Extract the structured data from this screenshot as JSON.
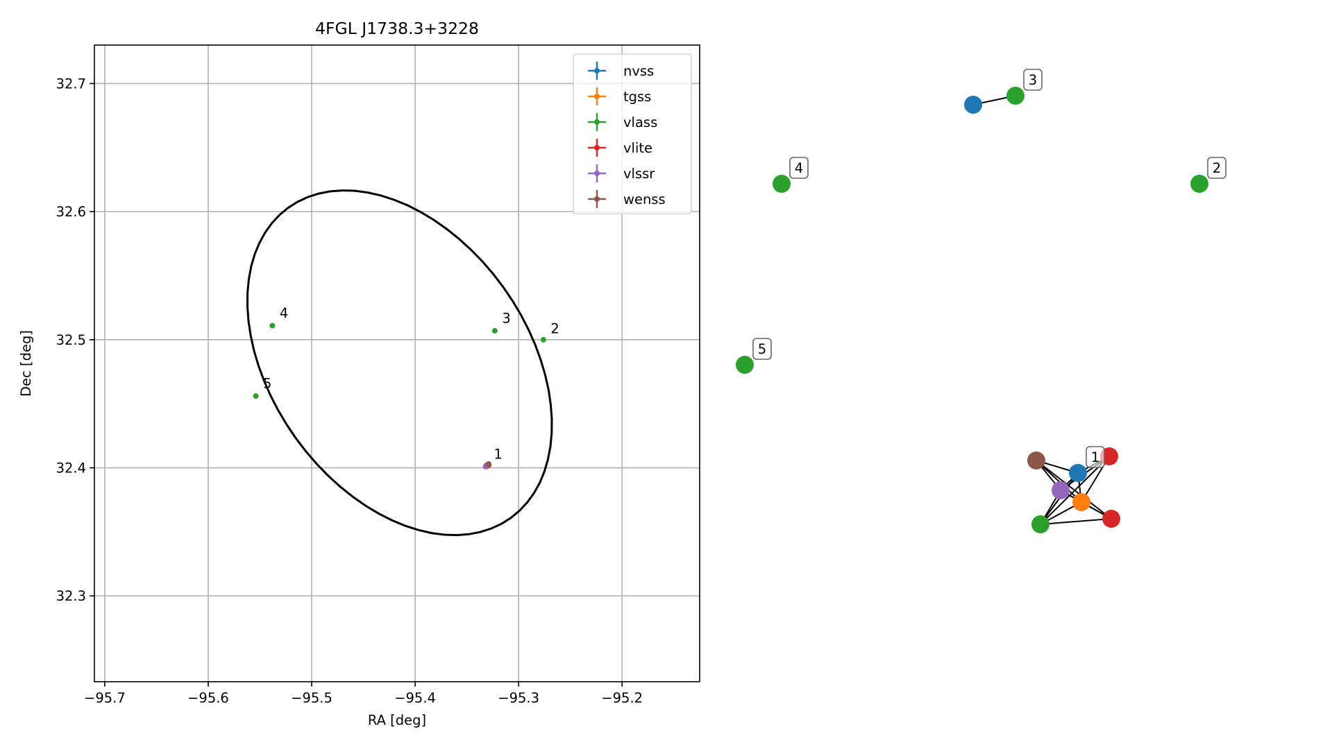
{
  "chart_data": [
    {
      "type": "scatter",
      "title": "4FGL J1738.3+3228",
      "xlabel": "RA [deg]",
      "ylabel": "Dec [deg]",
      "xlim": [
        -95.71,
        -95.125
      ],
      "ylim": [
        32.233,
        32.73
      ],
      "grid": true,
      "legend_position": "top-right",
      "x_ticks": [
        -95.7,
        -95.6,
        -95.5,
        -95.4,
        -95.3,
        -95.2
      ],
      "x_tick_labels": [
        "−95.7",
        "−95.6",
        "−95.5",
        "−95.4",
        "−95.3",
        "−95.2"
      ],
      "y_ticks": [
        32.3,
        32.4,
        32.5,
        32.6,
        32.7
      ],
      "y_tick_labels": [
        "32.3",
        "32.4",
        "32.5",
        "32.6",
        "32.7"
      ],
      "series": [
        {
          "name": "nvss",
          "color": "#1f77b4",
          "points": [
            {
              "x": -95.331,
              "y": 32.402
            }
          ]
        },
        {
          "name": "tgss",
          "color": "#ff7f0e",
          "points": [
            {
              "x": -95.331,
              "y": 32.401
            }
          ]
        },
        {
          "name": "vlass",
          "color": "#2ca02c",
          "points": [
            {
              "x": -95.331,
              "y": 32.401
            },
            {
              "x": -95.276,
              "y": 32.5
            },
            {
              "x": -95.323,
              "y": 32.507
            },
            {
              "x": -95.538,
              "y": 32.511
            },
            {
              "x": -95.554,
              "y": 32.456
            }
          ]
        },
        {
          "name": "vlite",
          "color": "#d62728",
          "points": [
            {
              "x": -95.33,
              "y": 32.402
            },
            {
              "x": -95.329,
              "y": 32.402
            }
          ]
        },
        {
          "name": "vlssr",
          "color": "#9467bd",
          "points": [
            {
              "x": -95.332,
              "y": 32.401
            }
          ]
        },
        {
          "name": "wenss",
          "color": "#8c564b",
          "points": [
            {
              "x": -95.329,
              "y": 32.403
            }
          ]
        }
      ],
      "annotations": [
        {
          "text": "1",
          "x": -95.328,
          "y": 32.405
        },
        {
          "text": "2",
          "x": -95.273,
          "y": 32.503
        },
        {
          "text": "3",
          "x": -95.32,
          "y": 32.511
        },
        {
          "text": "4",
          "x": -95.535,
          "y": 32.515
        },
        {
          "text": "5",
          "x": -95.551,
          "y": 32.46
        }
      ],
      "ellipse": {
        "center": [
          -95.415,
          32.482
        ],
        "semi_major": 0.165,
        "semi_minor": 0.112,
        "angle_deg": -38,
        "color": "#000000"
      }
    },
    {
      "type": "network",
      "nodes": [
        {
          "id": "n3_nvss",
          "color": "#1f77b4"
        },
        {
          "id": "n3_vlass",
          "color": "#2ca02c",
          "label": "3"
        },
        {
          "id": "n4_vlass",
          "color": "#2ca02c",
          "label": "4"
        },
        {
          "id": "n2_vlass",
          "color": "#2ca02c",
          "label": "2"
        },
        {
          "id": "n5_vlass",
          "color": "#2ca02c",
          "label": "5"
        },
        {
          "id": "n1_wenss",
          "color": "#8c564b"
        },
        {
          "id": "n1_nvss",
          "color": "#1f77b4",
          "label": "1"
        },
        {
          "id": "n1_vlite_a",
          "color": "#d62728"
        },
        {
          "id": "n1_vlssr",
          "color": "#9467bd"
        },
        {
          "id": "n1_tgss",
          "color": "#ff7f0e"
        },
        {
          "id": "n1_vlass",
          "color": "#2ca02c"
        },
        {
          "id": "n1_vlite_b",
          "color": "#d62728"
        }
      ],
      "edges": [
        [
          "n3_nvss",
          "n3_vlass"
        ],
        [
          "n1_wenss",
          "n1_nvss"
        ],
        [
          "n1_wenss",
          "n1_tgss"
        ],
        [
          "n1_wenss",
          "n1_vlite_b"
        ],
        [
          "n1_wenss",
          "n1_vlssr"
        ],
        [
          "n1_nvss",
          "n1_vlite_a"
        ],
        [
          "n1_nvss",
          "n1_vlssr"
        ],
        [
          "n1_nvss",
          "n1_tgss"
        ],
        [
          "n1_nvss",
          "n1_vlass"
        ],
        [
          "n1_vlite_a",
          "n1_vlssr"
        ],
        [
          "n1_vlite_a",
          "n1_tgss"
        ],
        [
          "n1_vlite_a",
          "n1_vlass"
        ],
        [
          "n1_vlssr",
          "n1_tgss"
        ],
        [
          "n1_vlssr",
          "n1_vlass"
        ],
        [
          "n1_vlssr",
          "n1_vlite_b"
        ],
        [
          "n1_tgss",
          "n1_vlass"
        ],
        [
          "n1_tgss",
          "n1_vlite_b"
        ],
        [
          "n1_vlass",
          "n1_vlite_b"
        ]
      ]
    }
  ]
}
